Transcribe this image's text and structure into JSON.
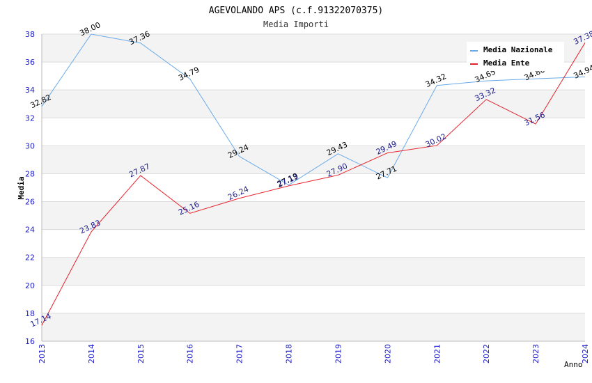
{
  "chart_data": {
    "type": "line",
    "title": "AGEVOLANDO APS (c.f.91322070375)",
    "subtitle": "Media Importi",
    "xlabel": "Anno",
    "ylabel": "Media",
    "ylim": [
      16,
      38
    ],
    "yticks": [
      "16",
      "18",
      "20",
      "22",
      "24",
      "26",
      "28",
      "30",
      "32",
      "34",
      "36",
      "38"
    ],
    "categories": [
      "2013",
      "2014",
      "2015",
      "2016",
      "2017",
      "2018",
      "2019",
      "2020",
      "2021",
      "2022",
      "2023",
      "2024"
    ],
    "series": [
      {
        "name": "Media Nazionale",
        "color": "#6aaae8",
        "label_color": "#000000",
        "values": [
          32.82,
          38.0,
          37.36,
          34.79,
          29.24,
          27.19,
          29.43,
          27.71,
          34.32,
          34.65,
          34.8,
          34.94
        ],
        "labels": [
          "32.82",
          "38.00",
          "37.36",
          "34.79",
          "29.24",
          "27.19",
          "29.43",
          "27.71",
          "34.32",
          "34.65",
          "34.80",
          "34.94"
        ]
      },
      {
        "name": "Media Ente",
        "color": "#e8202a",
        "label_color": "#1a1a8c",
        "values": [
          17.14,
          23.83,
          27.87,
          25.16,
          26.24,
          27.13,
          27.9,
          29.49,
          30.02,
          33.32,
          31.56,
          37.38
        ],
        "labels": [
          "17.14",
          "23.83",
          "27.87",
          "25.16",
          "26.24",
          "27.13",
          "27.90",
          "29.49",
          "30.02",
          "33.32",
          "31.56",
          "37.38"
        ]
      }
    ],
    "legend": "top-right",
    "grid": true
  }
}
